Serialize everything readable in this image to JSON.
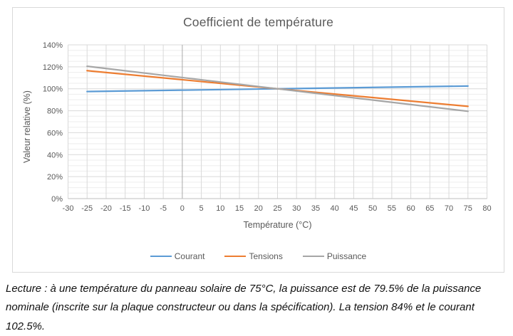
{
  "figure": {
    "title": "Coefficient de température",
    "caption": "Lecture : à une température du panneau solaire de 75°C, la puissance est de 79.5% de la puissance nominale (inscrite sur la plaque constructeur ou dans la spécification). La tension 84% et le courant 102.5%."
  },
  "chart_data": {
    "type": "line",
    "title": "Coefficient de température",
    "xlabel": "Température (°C)",
    "ylabel": "Valeur relative (%)",
    "xlim": [
      -30,
      80
    ],
    "ylim": [
      0,
      140
    ],
    "x_ticks": [
      -30,
      -25,
      -20,
      -15,
      -10,
      -5,
      0,
      5,
      10,
      15,
      20,
      25,
      30,
      35,
      40,
      45,
      50,
      55,
      60,
      65,
      70,
      75,
      80
    ],
    "y_ticks": [
      0,
      20,
      40,
      60,
      80,
      100,
      120,
      140
    ],
    "y_tick_suffix": "%",
    "y_minor_step": 5,
    "grid": "major+minor",
    "legend_position": "bottom",
    "series": [
      {
        "name": "Courant",
        "color": "#5B9BD5",
        "x": [
          -25,
          25,
          75
        ],
        "values": [
          97.5,
          100,
          102.5
        ]
      },
      {
        "name": "Tensions",
        "color": "#ED7D31",
        "x": [
          -25,
          25,
          75
        ],
        "values": [
          116.5,
          100,
          84
        ]
      },
      {
        "name": "Puissance",
        "color": "#A6A6A6",
        "x": [
          -25,
          25,
          75
        ],
        "values": [
          120.5,
          100,
          79.5
        ]
      }
    ],
    "colors": {
      "major_gridline": "#d9d9d9",
      "minor_gridline": "#ededed",
      "zero_gridline": "#a9a9a9",
      "axis_line": "#bfbfbf",
      "tick_label": "#595959",
      "title": "#595959"
    }
  }
}
